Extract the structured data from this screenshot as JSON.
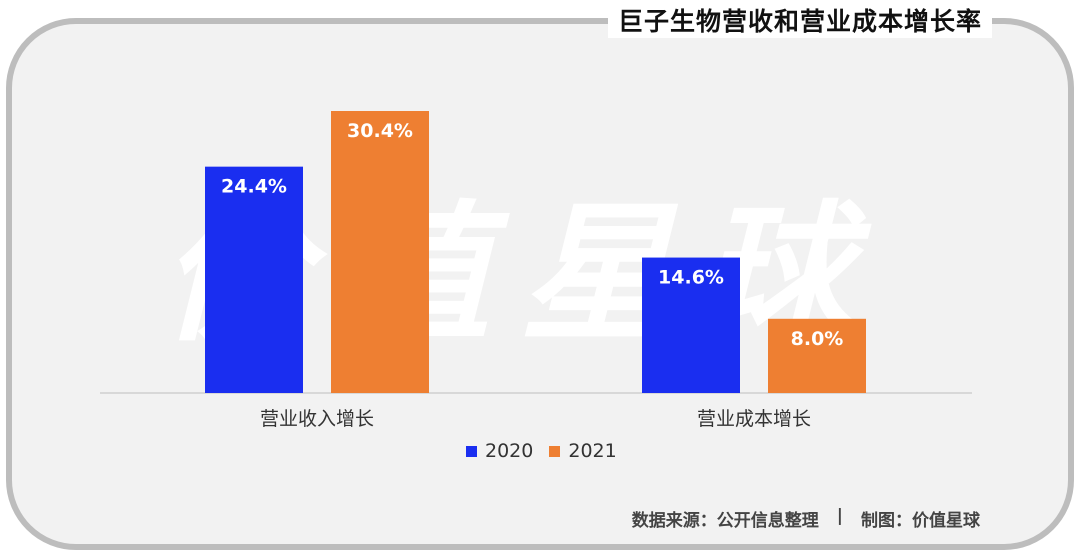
{
  "title": "巨子生物营收和营业成本增长率",
  "watermark": "价值星球",
  "colors": {
    "2020": "#1a2ef0",
    "2021": "#ee7f32",
    "frame": "#bdbdbd",
    "panel": "#f2f2f2"
  },
  "chart_data": {
    "type": "bar",
    "categories": [
      "营业收入增长",
      "营业成本增长"
    ],
    "series": [
      {
        "name": "2020",
        "values": [
          24.4,
          14.6
        ],
        "labels": [
          "24.4%",
          "14.6%"
        ]
      },
      {
        "name": "2021",
        "values": [
          30.4,
          8.0
        ],
        "labels": [
          "30.4%",
          "8.0%"
        ]
      }
    ],
    "ylim": [
      0,
      30.4
    ],
    "grid": false,
    "legend": "bottom"
  },
  "footer": {
    "source": "数据来源：公开信息整理",
    "separator": "|",
    "credit": "制图：价值星球"
  }
}
